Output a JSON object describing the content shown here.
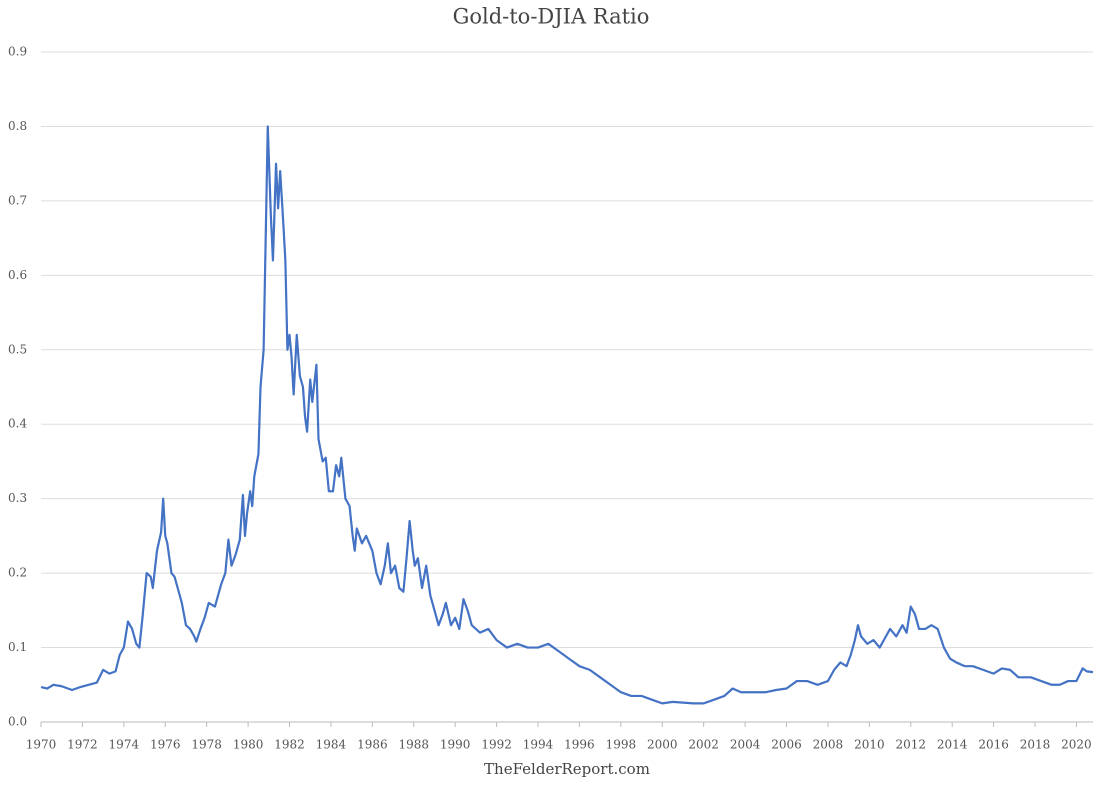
{
  "chart_data": {
    "type": "line",
    "title": "Gold-to-DJIA Ratio",
    "source": "TheFelderReport.com",
    "color": "#4472c4",
    "grid": true,
    "xlim": [
      1970,
      2020.8
    ],
    "xticks": [
      1970,
      1972,
      1974,
      1976,
      1978,
      1980,
      1982,
      1984,
      1986,
      1988,
      1990,
      1992,
      1994,
      1996,
      1998,
      2000,
      2002,
      2004,
      2006,
      2008,
      2010,
      2012,
      2014,
      2016,
      2018,
      2020
    ],
    "ylim": [
      0,
      0.9
    ],
    "yticks": [
      {
        "value": 0,
        "label": "0.0"
      },
      0.1,
      0.2,
      0.3,
      0.4,
      0.5,
      0.6,
      0.7,
      0.8,
      0.9
    ],
    "x": [
      1970.0,
      1970.3,
      1970.6,
      1971.0,
      1971.5,
      1971.9,
      1972.3,
      1972.7,
      1973.0,
      1973.3,
      1973.6,
      1973.8,
      1974.0,
      1974.2,
      1974.4,
      1974.6,
      1974.75,
      1974.9,
      1975.1,
      1975.3,
      1975.4,
      1975.6,
      1975.8,
      1975.9,
      1976.0,
      1976.1,
      1976.3,
      1976.45,
      1976.6,
      1976.8,
      1977.0,
      1977.2,
      1977.4,
      1977.5,
      1977.7,
      1977.9,
      1978.1,
      1978.4,
      1978.7,
      1978.9,
      1979.05,
      1979.2,
      1979.4,
      1979.6,
      1979.75,
      1979.85,
      1979.95,
      1980.1,
      1980.2,
      1980.3,
      1980.5,
      1980.6,
      1980.75,
      1980.85,
      1980.95,
      1981.1,
      1981.2,
      1981.35,
      1981.45,
      1981.55,
      1981.7,
      1981.8,
      1981.9,
      1982.0,
      1982.1,
      1982.2,
      1982.35,
      1982.5,
      1982.65,
      1982.75,
      1982.85,
      1983.0,
      1983.1,
      1983.3,
      1983.4,
      1983.6,
      1983.75,
      1983.9,
      1984.1,
      1984.25,
      1984.4,
      1984.5,
      1984.7,
      1984.9,
      1985.05,
      1985.15,
      1985.25,
      1985.5,
      1985.7,
      1986.0,
      1986.2,
      1986.4,
      1986.6,
      1986.75,
      1986.9,
      1987.1,
      1987.3,
      1987.5,
      1987.65,
      1987.8,
      1987.95,
      1988.05,
      1988.2,
      1988.4,
      1988.6,
      1988.8,
      1989.0,
      1989.2,
      1989.4,
      1989.55,
      1989.8,
      1990.0,
      1990.2,
      1990.4,
      1990.6,
      1990.8,
      1991.2,
      1991.6,
      1992.0,
      1992.5,
      1993.0,
      1993.5,
      1994.0,
      1994.5,
      1995.0,
      1995.5,
      1996.0,
      1996.5,
      1997.0,
      1997.5,
      1998.0,
      1998.5,
      1999.0,
      1999.5,
      2000.0,
      2000.5,
      2001.0,
      2001.5,
      2002.0,
      2002.5,
      2003.0,
      2003.4,
      2003.8,
      2004.5,
      2005.0,
      2005.5,
      2006.0,
      2006.5,
      2007.0,
      2007.5,
      2008.0,
      2008.3,
      2008.6,
      2008.9,
      2009.1,
      2009.3,
      2009.45,
      2009.6,
      2009.9,
      2010.2,
      2010.5,
      2010.8,
      2011.0,
      2011.3,
      2011.6,
      2011.8,
      2012.0,
      2012.2,
      2012.4,
      2012.7,
      2013.0,
      2013.3,
      2013.6,
      2013.9,
      2014.2,
      2014.6,
      2015.0,
      2015.5,
      2016.0,
      2016.4,
      2016.8,
      2017.2,
      2017.8,
      2018.3,
      2018.8,
      2019.2,
      2019.6,
      2020.0,
      2020.3,
      2020.5,
      2020.8
    ],
    "values": [
      0.047,
      0.045,
      0.05,
      0.048,
      0.043,
      0.047,
      0.05,
      0.053,
      0.07,
      0.065,
      0.068,
      0.09,
      0.1,
      0.135,
      0.125,
      0.105,
      0.1,
      0.14,
      0.2,
      0.195,
      0.18,
      0.23,
      0.255,
      0.3,
      0.25,
      0.24,
      0.2,
      0.195,
      0.18,
      0.16,
      0.13,
      0.125,
      0.115,
      0.108,
      0.125,
      0.14,
      0.16,
      0.155,
      0.185,
      0.2,
      0.245,
      0.21,
      0.225,
      0.245,
      0.305,
      0.25,
      0.28,
      0.31,
      0.29,
      0.33,
      0.36,
      0.45,
      0.5,
      0.65,
      0.8,
      0.68,
      0.62,
      0.75,
      0.69,
      0.74,
      0.67,
      0.62,
      0.5,
      0.52,
      0.49,
      0.44,
      0.52,
      0.465,
      0.45,
      0.41,
      0.39,
      0.46,
      0.43,
      0.48,
      0.38,
      0.35,
      0.355,
      0.31,
      0.31,
      0.345,
      0.33,
      0.355,
      0.3,
      0.29,
      0.25,
      0.23,
      0.26,
      0.24,
      0.25,
      0.23,
      0.2,
      0.185,
      0.21,
      0.24,
      0.2,
      0.21,
      0.18,
      0.175,
      0.22,
      0.27,
      0.23,
      0.21,
      0.22,
      0.18,
      0.21,
      0.17,
      0.15,
      0.13,
      0.145,
      0.16,
      0.13,
      0.14,
      0.125,
      0.165,
      0.15,
      0.13,
      0.12,
      0.125,
      0.11,
      0.1,
      0.105,
      0.1,
      0.1,
      0.105,
      0.095,
      0.085,
      0.075,
      0.07,
      0.06,
      0.05,
      0.04,
      0.035,
      0.035,
      0.03,
      0.025,
      0.027,
      0.026,
      0.025,
      0.025,
      0.03,
      0.035,
      0.045,
      0.04,
      0.04,
      0.04,
      0.043,
      0.045,
      0.055,
      0.055,
      0.05,
      0.055,
      0.07,
      0.08,
      0.075,
      0.09,
      0.11,
      0.13,
      0.115,
      0.105,
      0.11,
      0.1,
      0.115,
      0.125,
      0.115,
      0.13,
      0.12,
      0.155,
      0.145,
      0.125,
      0.125,
      0.13,
      0.125,
      0.1,
      0.085,
      0.08,
      0.075,
      0.075,
      0.07,
      0.065,
      0.072,
      0.07,
      0.06,
      0.06,
      0.055,
      0.05,
      0.05,
      0.055,
      0.055,
      0.072,
      0.068,
      0.067
    ]
  }
}
